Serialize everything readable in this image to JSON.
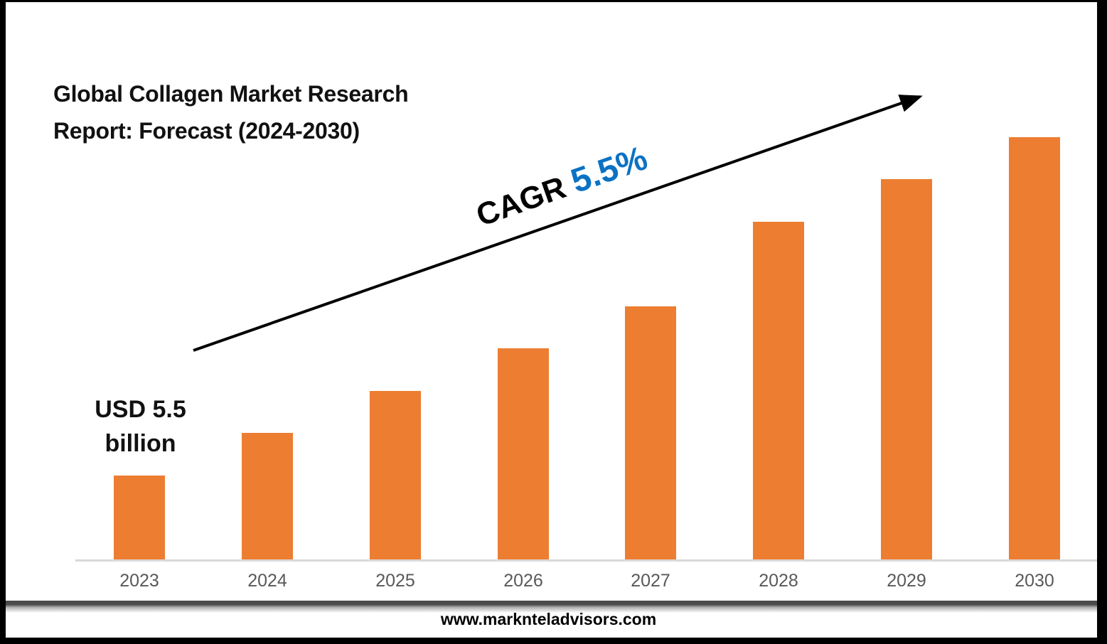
{
  "page": {
    "title_line1": "Global Collagen Market Research",
    "title_line2": "Report: Forecast (2024-2030)",
    "footer_url": "www.marknteladvisors.com"
  },
  "annotations": {
    "cagr_prefix": "CAGR ",
    "cagr_value": "5.5%",
    "start_value_line1": "USD 5.5",
    "start_value_line2": "billion"
  },
  "colors": {
    "bar": "#ED7D31",
    "cagr_value_blue": "#0B72C4",
    "axis_label_gray": "#595959",
    "axis_line_gray": "#D9D9D9",
    "arrow_black": "#000000"
  },
  "chart_data": {
    "type": "bar",
    "title": "Global Collagen Market Research Report: Forecast (2024-2030)",
    "categories": [
      "2023",
      "2024",
      "2025",
      "2026",
      "2027",
      "2028",
      "2029",
      "2030"
    ],
    "values": [
      2,
      3,
      4,
      5,
      6,
      8,
      9,
      10
    ],
    "values_note": "Relative bar heights as drawn; no value axis is shown. Only labeled value: 2023 = USD 5.5 billion.",
    "labeled_points": [
      {
        "category": "2023",
        "label": "USD 5.5 billion"
      }
    ],
    "growth_annotation": "CAGR 5.5%",
    "xlabel": "",
    "ylabel": "",
    "ylim": [
      0,
      11.8
    ],
    "grid": false,
    "legend": false,
    "bar_color": "#ED7D31"
  }
}
